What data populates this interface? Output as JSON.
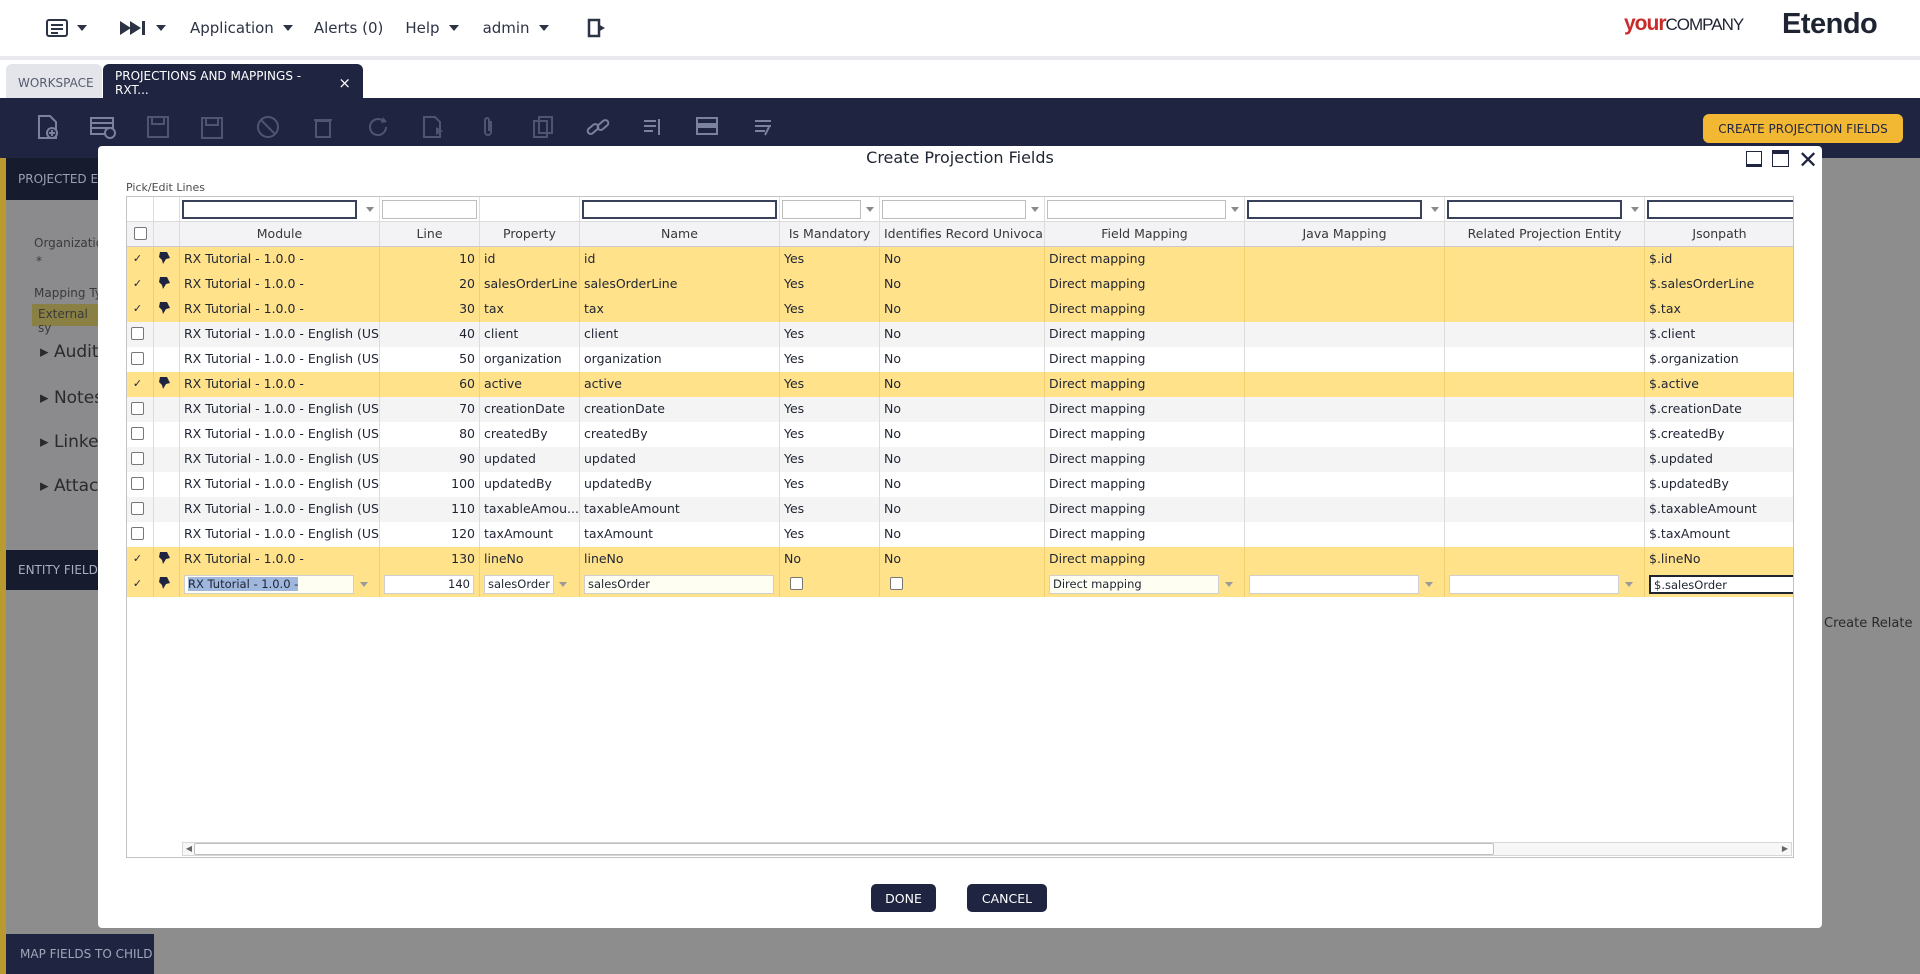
{
  "topnav": {
    "application": "Application",
    "alerts": "Alerts (0)",
    "help": "Help",
    "user": "admin",
    "brand_your": "your",
    "brand_company": "COMPANY",
    "brand_product": "Etendo"
  },
  "tabs": {
    "workspace": "WORKSPACE",
    "active": "PROJECTIONS AND MAPPINGS - RXT...",
    "active_close": "×"
  },
  "toolbar": {
    "create_projection_fields": "CREATE PROJECTION FIELDS"
  },
  "background": {
    "projected_entities": "PROJECTED EI",
    "organization_label": "Organizatio",
    "organization_value": "*",
    "mapping_type_label": "Mapping Ty",
    "mapping_type_value": "External sy",
    "sections": [
      "Audit",
      "Notes",
      "Linked",
      "Attac"
    ],
    "entity_field": "ENTITY FIELD",
    "map_fields_to_child": "MAP FIELDS TO CHILD",
    "create_related": "Create Relate"
  },
  "modal": {
    "title": "Create Projection Fields",
    "pick_edit_label": "Pick/Edit Lines",
    "done": "DONE",
    "cancel": "CANCEL",
    "columns": [
      "Module",
      "Line",
      "Property",
      "Name",
      "Is Mandatory",
      "Identifies Record Univocally",
      "Field Mapping",
      "Java Mapping",
      "Related Projection Entity",
      "Jsonpath"
    ],
    "rows": [
      {
        "selected": true,
        "module": "RX Tutorial - 1.0.0 -",
        "line": "10",
        "property": "id",
        "name": "id",
        "mandatory": "Yes",
        "identifies": "No",
        "field_mapping": "Direct mapping",
        "java": "",
        "related": "",
        "jsonpath": "$.id"
      },
      {
        "selected": true,
        "module": "RX Tutorial - 1.0.0 -",
        "line": "20",
        "property": "salesOrderLine",
        "name": "salesOrderLine",
        "mandatory": "Yes",
        "identifies": "No",
        "field_mapping": "Direct mapping",
        "java": "",
        "related": "",
        "jsonpath": "$.salesOrderLine"
      },
      {
        "selected": true,
        "module": "RX Tutorial - 1.0.0 -",
        "line": "30",
        "property": "tax",
        "name": "tax",
        "mandatory": "Yes",
        "identifies": "No",
        "field_mapping": "Direct mapping",
        "java": "",
        "related": "",
        "jsonpath": "$.tax"
      },
      {
        "selected": false,
        "module": "RX Tutorial - 1.0.0 - English (US...",
        "line": "40",
        "property": "client",
        "name": "client",
        "mandatory": "Yes",
        "identifies": "No",
        "field_mapping": "Direct mapping",
        "java": "",
        "related": "",
        "jsonpath": "$.client"
      },
      {
        "selected": false,
        "module": "RX Tutorial - 1.0.0 - English (US...",
        "line": "50",
        "property": "organization",
        "name": "organization",
        "mandatory": "Yes",
        "identifies": "No",
        "field_mapping": "Direct mapping",
        "java": "",
        "related": "",
        "jsonpath": "$.organization"
      },
      {
        "selected": true,
        "module": "RX Tutorial - 1.0.0 -",
        "line": "60",
        "property": "active",
        "name": "active",
        "mandatory": "Yes",
        "identifies": "No",
        "field_mapping": "Direct mapping",
        "java": "",
        "related": "",
        "jsonpath": "$.active"
      },
      {
        "selected": false,
        "module": "RX Tutorial - 1.0.0 - English (US...",
        "line": "70",
        "property": "creationDate",
        "name": "creationDate",
        "mandatory": "Yes",
        "identifies": "No",
        "field_mapping": "Direct mapping",
        "java": "",
        "related": "",
        "jsonpath": "$.creationDate"
      },
      {
        "selected": false,
        "module": "RX Tutorial - 1.0.0 - English (US...",
        "line": "80",
        "property": "createdBy",
        "name": "createdBy",
        "mandatory": "Yes",
        "identifies": "No",
        "field_mapping": "Direct mapping",
        "java": "",
        "related": "",
        "jsonpath": "$.createdBy"
      },
      {
        "selected": false,
        "module": "RX Tutorial - 1.0.0 - English (US...",
        "line": "90",
        "property": "updated",
        "name": "updated",
        "mandatory": "Yes",
        "identifies": "No",
        "field_mapping": "Direct mapping",
        "java": "",
        "related": "",
        "jsonpath": "$.updated"
      },
      {
        "selected": false,
        "module": "RX Tutorial - 1.0.0 - English (US...",
        "line": "100",
        "property": "updatedBy",
        "name": "updatedBy",
        "mandatory": "Yes",
        "identifies": "No",
        "field_mapping": "Direct mapping",
        "java": "",
        "related": "",
        "jsonpath": "$.updatedBy"
      },
      {
        "selected": false,
        "module": "RX Tutorial - 1.0.0 - English (US...",
        "line": "110",
        "property": "taxableAmou...",
        "name": "taxableAmount",
        "mandatory": "Yes",
        "identifies": "No",
        "field_mapping": "Direct mapping",
        "java": "",
        "related": "",
        "jsonpath": "$.taxableAmount"
      },
      {
        "selected": false,
        "module": "RX Tutorial - 1.0.0 - English (US...",
        "line": "120",
        "property": "taxAmount",
        "name": "taxAmount",
        "mandatory": "Yes",
        "identifies": "No",
        "field_mapping": "Direct mapping",
        "java": "",
        "related": "",
        "jsonpath": "$.taxAmount"
      },
      {
        "selected": true,
        "module": "RX Tutorial - 1.0.0 -",
        "line": "130",
        "property": "lineNo",
        "name": "lineNo",
        "mandatory": "No",
        "identifies": "No",
        "field_mapping": "Direct mapping",
        "java": "",
        "related": "",
        "jsonpath": "$.lineNo"
      }
    ],
    "edit_row": {
      "module": "RX Tutorial - 1.0.0 -",
      "line": "140",
      "property": "salesOrder",
      "name": "salesOrder",
      "field_mapping": "Direct mapping",
      "jsonpath": "$.salesOrder"
    }
  },
  "colors": {
    "navy": "#1f2540",
    "selected_row": "#ffe28a",
    "accent_button": "#f2b733",
    "brand_red": "#c92b2b"
  }
}
